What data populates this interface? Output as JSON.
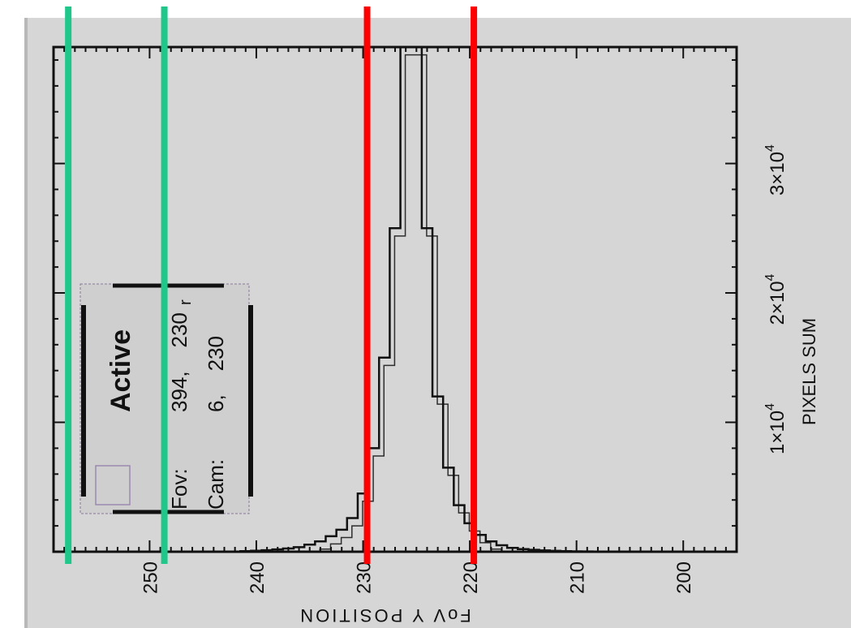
{
  "chart_data": {
    "type": "step",
    "xlabel": "FoV Y POSITION",
    "ylabel": "PIXELS SUM",
    "xlim": [
      259,
      195
    ],
    "ylim": [
      0,
      39000
    ],
    "x_ticks": [
      "250",
      "240",
      "230",
      "220",
      "210",
      "200"
    ],
    "y_ticks": [
      {
        "mantissa": "1×10",
        "exp": "4",
        "value": 10000
      },
      {
        "mantissa": "2×10",
        "exp": "4",
        "value": 20000
      },
      {
        "mantissa": "3×10",
        "exp": "4",
        "value": 30000
      }
    ],
    "series": [
      {
        "x": [
          242,
          241,
          240,
          239,
          238,
          237,
          236,
          235,
          234,
          233,
          232,
          231,
          230,
          229,
          228,
          227,
          226,
          225,
          224,
          223,
          222,
          221,
          220,
          219,
          218,
          217,
          216,
          215,
          214,
          213,
          212,
          211,
          210,
          209,
          208
        ],
        "values": [
          0,
          50,
          80,
          120,
          180,
          250,
          350,
          550,
          800,
          1200,
          1700,
          2600,
          4500,
          8000,
          15000,
          25000,
          39000,
          39000,
          25000,
          12000,
          6500,
          3600,
          2200,
          1300,
          800,
          500,
          300,
          200,
          150,
          100,
          70,
          50,
          30,
          20,
          0
        ]
      }
    ],
    "legend": {
      "title": "Active",
      "fov_label": "Fov:",
      "fov_value": "394,    230",
      "cam_label": "Cam:",
      "cam_value": "6,    230",
      "marker": "r"
    },
    "overlay_lines": [
      {
        "color": "#1fc88a",
        "x": 258
      },
      {
        "color": "#1fc88a",
        "x": 249
      },
      {
        "color": "#ff0000",
        "x": 230
      },
      {
        "color": "#ff0000",
        "x": 220
      }
    ]
  }
}
